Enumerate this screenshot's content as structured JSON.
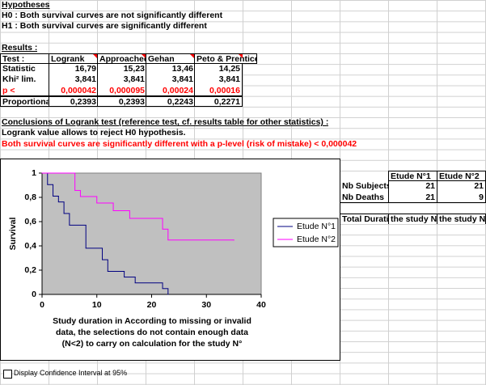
{
  "hypotheses": {
    "title": "Hypotheses",
    "h0": "H0 : Both survival curves are not significantly different",
    "h1": "H1 : Both survival curves are significantly different"
  },
  "results": {
    "title": "Results :",
    "header": [
      "Test :",
      "Logrank",
      "Approached",
      "Gehan",
      "Peto & Prentice"
    ],
    "rows": [
      [
        "Statistic",
        "16,79",
        "15,23",
        "13,46",
        "14,25"
      ],
      [
        "Khi² lim.",
        "3,841",
        "3,841",
        "3,841",
        "3,841"
      ],
      [
        "p <",
        "0,000042",
        "0,000095",
        "0,00024",
        "0,00016"
      ],
      [
        "Proportional",
        "0,2393",
        "0,2393",
        "0,2243",
        "0,2271"
      ]
    ]
  },
  "conclusions": {
    "title": "Conclusions of Logrank test (reference test, cf. results table for other statistics) :",
    "line1": "Logrank value allows to reject H0 hypothesis.",
    "line2": "Both survival curves are significantly different with a p-level (risk of mistake) < 0,000042"
  },
  "summary": {
    "header": [
      "Etude N°1",
      "Etude N°2"
    ],
    "rows": [
      [
        "Nb Subjects",
        "21",
        "21"
      ],
      [
        "Nb Deaths",
        "21",
        "9"
      ],
      [
        "Total Duration",
        "the study N°",
        "the study N°"
      ]
    ]
  },
  "checkbox": {
    "label": "Display Confidence Interval at 95%"
  },
  "chart_data": {
    "type": "step",
    "ylabel": "Survival",
    "xlabel": [
      "Study duration in According to missing or invalid",
      "data, the selections do not contain enough data",
      "(N<2) to carry on calculation for the study N°"
    ],
    "xlim": [
      0,
      40
    ],
    "xticks": [
      0,
      10,
      20,
      30,
      40
    ],
    "ylim": [
      0,
      1
    ],
    "yticks": [
      0,
      {
        "value": 0.2,
        "label": "0,2"
      },
      {
        "value": 0.4,
        "label": "0,4"
      },
      {
        "value": 0.6,
        "label": "0,6"
      },
      {
        "value": 0.8,
        "label": "0,8"
      },
      1
    ],
    "plot_background": "#c0c0c0",
    "series": [
      {
        "name": "Etude N°1",
        "color": "#000080",
        "x": [
          0,
          1,
          2,
          3,
          4,
          5,
          8,
          11,
          12,
          15,
          17,
          22,
          23
        ],
        "values": [
          1,
          0.905,
          0.81,
          0.762,
          0.667,
          0.571,
          0.381,
          0.286,
          0.19,
          0.143,
          0.095,
          0.048,
          0
        ]
      },
      {
        "name": "Etude N°2",
        "color": "#ff00ff",
        "x": [
          0,
          6,
          7,
          10,
          13,
          16,
          22,
          23,
          35
        ],
        "values": [
          1,
          0.857,
          0.807,
          0.753,
          0.69,
          0.627,
          0.538,
          0.448,
          0.448
        ]
      }
    ]
  }
}
